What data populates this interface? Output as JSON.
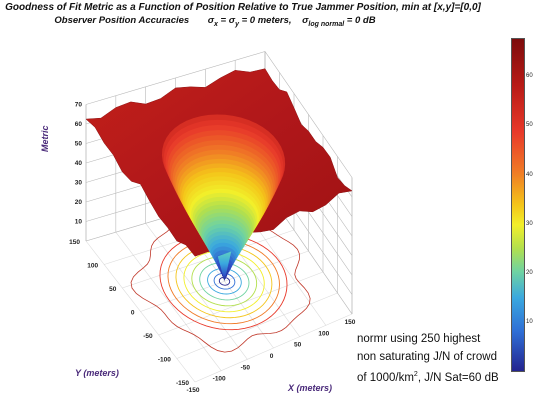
{
  "title_line1": "Goodness of Fit Metric as a Function of Position Relative to True Jammer Position, min at [x,y]=[0,0]",
  "title_line2_prefix": "Observer Position Accuracies",
  "title_line2_sigma": "σ",
  "title_line2_sub_x": "x",
  "title_line2_eq1": " = σ",
  "title_line2_sub_y": "y",
  "title_line2_eq2": " = 0 meters,",
  "title_line2_sigma2": "σ",
  "title_line2_sub_log": "log normal",
  "title_line2_eq3": " = 0 dB",
  "note": {
    "line1": "normr using 250 highest",
    "line2": "non saturating J/N of crowd",
    "line3_pre": "of 1000/km",
    "line3_sup": "2",
    "line3_post": ", J/N Sat=60 dB"
  },
  "chart_data": {
    "type": "surface",
    "zlabel": "Metric",
    "xlabel": "X (meters)",
    "ylabel": "Y (meters)",
    "x_ticks": [
      -150,
      -100,
      -50,
      0,
      50,
      100,
      150
    ],
    "y_ticks": [
      -150,
      -100,
      -50,
      0,
      50,
      100,
      150
    ],
    "z_ticks": [
      10,
      20,
      30,
      40,
      50,
      60,
      70
    ],
    "zlim": [
      0,
      70
    ],
    "xlim": [
      -150,
      150
    ],
    "ylim": [
      -150,
      150
    ],
    "surface": {
      "minimum_at": [
        0,
        0
      ],
      "minimum_value": 0,
      "plateau_value": 62,
      "plateau_starts_at_radius_m": 95
    },
    "colorbar_ticks": [
      10,
      20,
      30,
      40,
      50,
      60
    ],
    "colorbar_range": [
      0,
      68
    ],
    "colors": {
      "high": "#b81a16",
      "mid": "#f2ef2a",
      "low": "#24248f"
    },
    "contours_under_surface": true
  }
}
